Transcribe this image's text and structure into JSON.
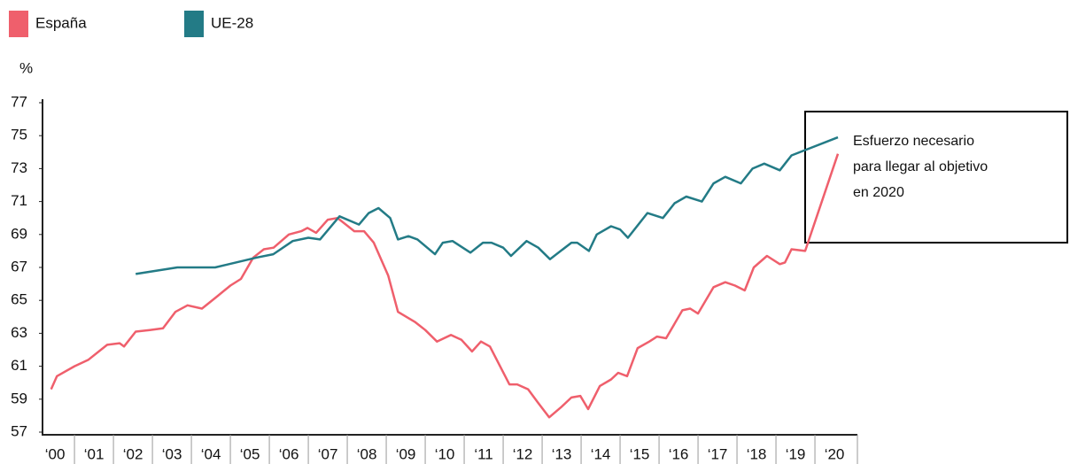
{
  "chart_data": {
    "type": "line",
    "y_label": "%",
    "annotation": [
      "Esfuerzo necesario",
      "para llegar al objetivo",
      "en 2020"
    ],
    "xlim": [
      1999.68,
      2020.59
    ],
    "ylim": [
      57,
      77
    ],
    "yticks": [
      57,
      59,
      61,
      63,
      65,
      67,
      69,
      71,
      73,
      75,
      77
    ],
    "xticks": [
      {
        "value": 2000,
        "label": "‘00"
      },
      {
        "value": 2001,
        "label": "‘01"
      },
      {
        "value": 2002,
        "label": "‘02"
      },
      {
        "value": 2003,
        "label": "‘03"
      },
      {
        "value": 2004,
        "label": "‘04"
      },
      {
        "value": 2005,
        "label": "‘05"
      },
      {
        "value": 2006,
        "label": "‘06"
      },
      {
        "value": 2007,
        "label": "‘07"
      },
      {
        "value": 2008,
        "label": "‘08"
      },
      {
        "value": 2009,
        "label": "‘09"
      },
      {
        "value": 2010,
        "label": "‘10"
      },
      {
        "value": 2011,
        "label": "‘11"
      },
      {
        "value": 2012,
        "label": "‘12"
      },
      {
        "value": 2013,
        "label": "‘13"
      },
      {
        "value": 2014,
        "label": "‘14"
      },
      {
        "value": 2015,
        "label": "‘15"
      },
      {
        "value": 2016,
        "label": "‘16"
      },
      {
        "value": 2017,
        "label": "‘17"
      },
      {
        "value": 2018,
        "label": "‘18"
      },
      {
        "value": 2019,
        "label": "‘19"
      },
      {
        "value": 2020,
        "label": "‘20"
      }
    ],
    "series": [
      {
        "name": "España",
        "color": "#ef5f6c",
        "x": [
          1999.9,
          2000.05,
          2000.5,
          2000.86,
          2001.34,
          2001.66,
          2001.77,
          2002.07,
          2002.43,
          2002.77,
          2003.09,
          2003.4,
          2003.77,
          2004.14,
          2004.5,
          2004.77,
          2005.09,
          2005.36,
          2005.61,
          2006.0,
          2006.32,
          2006.48,
          2006.7,
          2007.0,
          2007.25,
          2007.68,
          2007.93,
          2008.18,
          2008.55,
          2008.8,
          2009.23,
          2009.5,
          2009.8,
          2010.16,
          2010.43,
          2010.7,
          2010.93,
          2011.16,
          2011.66,
          2011.86,
          2012.14,
          2012.39,
          2012.68,
          2012.98,
          2013.25,
          2013.48,
          2013.68,
          2013.98,
          2014.27,
          2014.45,
          2014.68,
          2014.95,
          2015.25,
          2015.45,
          2015.68,
          2016.1,
          2016.3,
          2016.5,
          2016.9,
          2017.2,
          2017.45,
          2017.7,
          2017.93,
          2018.27,
          2018.6,
          2018.73,
          2018.9,
          2019.25,
          2020.09
        ],
        "values": [
          59.6,
          60.4,
          61.0,
          61.4,
          62.3,
          62.4,
          62.2,
          63.1,
          63.2,
          63.3,
          64.3,
          64.7,
          64.5,
          65.2,
          65.9,
          66.3,
          67.6,
          68.1,
          68.2,
          69.0,
          69.2,
          69.4,
          69.1,
          69.9,
          70.0,
          69.2,
          69.2,
          68.5,
          66.5,
          64.3,
          63.7,
          63.2,
          62.5,
          62.9,
          62.6,
          61.9,
          62.5,
          62.2,
          59.9,
          59.9,
          59.6,
          58.8,
          57.9,
          58.5,
          59.1,
          59.2,
          58.4,
          59.8,
          60.2,
          60.6,
          60.4,
          62.1,
          62.5,
          62.8,
          62.7,
          64.4,
          64.5,
          64.2,
          65.8,
          66.1,
          65.9,
          65.6,
          67.0,
          67.7,
          67.2,
          67.3,
          68.1,
          68.0,
          73.9
        ]
      },
      {
        "name": "UE-28",
        "color": "#237b86",
        "x": [
          2002.07,
          2003.14,
          2004.11,
          2005.18,
          2005.6,
          2006.1,
          2006.5,
          2006.8,
          2007.3,
          2007.8,
          2008.05,
          2008.3,
          2008.6,
          2008.8,
          2009.07,
          2009.3,
          2009.75,
          2009.95,
          2010.2,
          2010.66,
          2010.98,
          2011.2,
          2011.5,
          2011.7,
          2012.1,
          2012.4,
          2012.7,
          2013.25,
          2013.4,
          2013.7,
          2013.9,
          2014.27,
          2014.5,
          2014.7,
          2015.2,
          2015.6,
          2015.9,
          2016.2,
          2016.6,
          2016.9,
          2017.2,
          2017.6,
          2017.9,
          2018.2,
          2018.6,
          2018.9,
          2020.09
        ],
        "values": [
          66.6,
          67.0,
          67.0,
          67.6,
          67.8,
          68.6,
          68.8,
          68.7,
          70.1,
          69.6,
          70.3,
          70.6,
          70.0,
          68.7,
          68.9,
          68.7,
          67.8,
          68.5,
          68.6,
          67.9,
          68.5,
          68.5,
          68.2,
          67.7,
          68.6,
          68.2,
          67.5,
          68.5,
          68.5,
          68.0,
          69.0,
          69.5,
          69.3,
          68.8,
          70.3,
          70.0,
          70.9,
          71.3,
          71.0,
          72.1,
          72.5,
          72.1,
          73.0,
          73.3,
          72.9,
          73.8,
          74.9
        ]
      }
    ]
  }
}
